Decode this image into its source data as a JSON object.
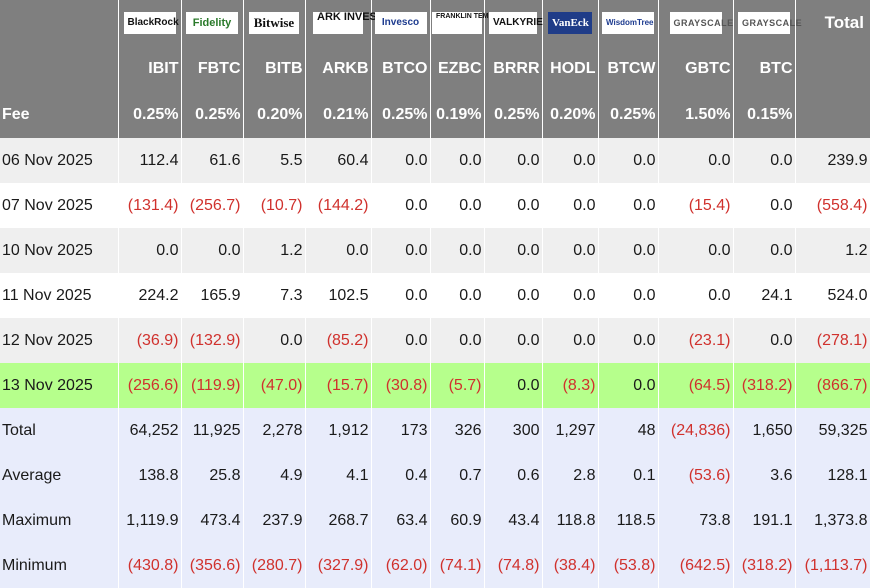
{
  "header": {
    "logos": [
      "BlackRock",
      "Fidelity",
      "Bitwise",
      "ARK INVEST",
      "Invesco",
      "FRANKLIN TEMPLETON",
      "VALKYRIE",
      "VanEck",
      "WisdomTree",
      "GRAYSCALE",
      "GRAYSCALE"
    ],
    "total_label": "Total",
    "tickers": [
      "IBIT",
      "FBTC",
      "BITB",
      "ARKB",
      "BTCO",
      "EZBC",
      "BRRR",
      "HODL",
      "BTCW",
      "GBTC",
      "BTC"
    ],
    "fee_label": "Fee",
    "fees": [
      "0.25%",
      "0.25%",
      "0.20%",
      "0.21%",
      "0.25%",
      "0.19%",
      "0.25%",
      "0.20%",
      "0.25%",
      "1.50%",
      "0.15%"
    ]
  },
  "rows": [
    {
      "label": "06 Nov 2025",
      "values": [
        "112.4",
        "61.6",
        "5.5",
        "60.4",
        "0.0",
        "0.0",
        "0.0",
        "0.0",
        "0.0",
        "0.0",
        "0.0",
        "239.9"
      ]
    },
    {
      "label": "07 Nov 2025",
      "values": [
        "(131.4)",
        "(256.7)",
        "(10.7)",
        "(144.2)",
        "0.0",
        "0.0",
        "0.0",
        "0.0",
        "0.0",
        "(15.4)",
        "0.0",
        "(558.4)"
      ]
    },
    {
      "label": "10 Nov 2025",
      "values": [
        "0.0",
        "0.0",
        "1.2",
        "0.0",
        "0.0",
        "0.0",
        "0.0",
        "0.0",
        "0.0",
        "0.0",
        "0.0",
        "1.2"
      ]
    },
    {
      "label": "11 Nov 2025",
      "values": [
        "224.2",
        "165.9",
        "7.3",
        "102.5",
        "0.0",
        "0.0",
        "0.0",
        "0.0",
        "0.0",
        "0.0",
        "24.1",
        "524.0"
      ]
    },
    {
      "label": "12 Nov 2025",
      "values": [
        "(36.9)",
        "(132.9)",
        "0.0",
        "(85.2)",
        "0.0",
        "0.0",
        "0.0",
        "0.0",
        "0.0",
        "(23.1)",
        "0.0",
        "(278.1)"
      ]
    },
    {
      "label": "13 Nov 2025",
      "values": [
        "(256.6)",
        "(119.9)",
        "(47.0)",
        "(15.7)",
        "(30.8)",
        "(5.7)",
        "0.0",
        "(8.3)",
        "0.0",
        "(64.5)",
        "(318.2)",
        "(866.7)"
      ]
    }
  ],
  "summary": [
    {
      "label": "Total",
      "values": [
        "64,252",
        "11,925",
        "2,278",
        "1,912",
        "173",
        "326",
        "300",
        "1,297",
        "48",
        "(24,836)",
        "1,650",
        "59,325"
      ]
    },
    {
      "label": "Average",
      "values": [
        "138.8",
        "25.8",
        "4.9",
        "4.1",
        "0.4",
        "0.7",
        "0.6",
        "2.8",
        "0.1",
        "(53.6)",
        "3.6",
        "128.1"
      ]
    },
    {
      "label": "Maximum",
      "values": [
        "1,119.9",
        "473.4",
        "237.9",
        "268.7",
        "63.4",
        "60.9",
        "43.4",
        "118.8",
        "118.5",
        "73.8",
        "191.1",
        "1,373.8"
      ]
    },
    {
      "label": "Minimum",
      "values": [
        "(430.8)",
        "(356.6)",
        "(280.7)",
        "(327.9)",
        "(62.0)",
        "(74.1)",
        "(74.8)",
        "(38.4)",
        "(53.8)",
        "(642.5)",
        "(318.2)",
        "(1,113.7)"
      ]
    }
  ],
  "colors": {
    "header_bg": "#7f7f7f",
    "stripe_bg": "#efefef",
    "highlight_bg": "#b6ff8c",
    "summary_bg": "#e8ecfb",
    "negative": "#d0312d"
  }
}
